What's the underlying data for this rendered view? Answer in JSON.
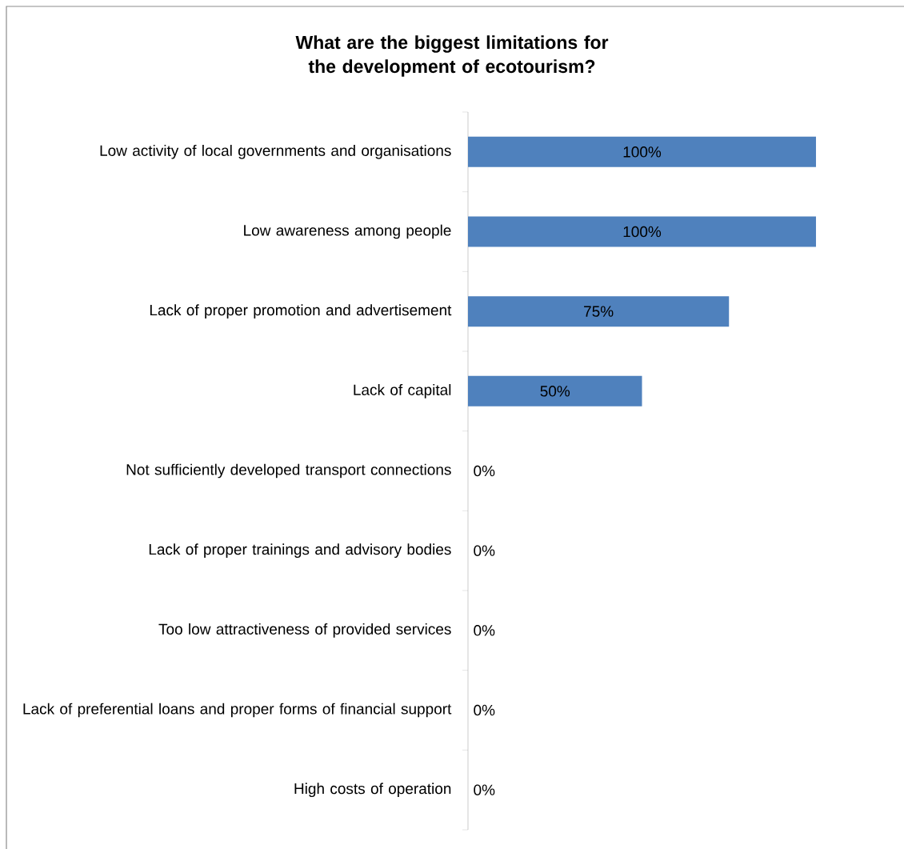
{
  "chart_data": {
    "type": "bar",
    "orientation": "horizontal",
    "title": "What are the biggest limitations for the development of ecotourism?",
    "categories": [
      "Low activity of local governments and organisations",
      "Low awareness among people",
      "Lack of proper promotion and advertisement",
      "Lack of capital",
      "Not sufficiently developed transport connections",
      "Lack of proper trainings and advisory bodies",
      "Too low attractiveness of provided services",
      "Lack of preferential loans and proper forms of financial support",
      "High costs of operation"
    ],
    "values": [
      100,
      100,
      75,
      50,
      0,
      0,
      0,
      0,
      0
    ],
    "value_labels": [
      "100%",
      "100%",
      "75%",
      "50%",
      "0%",
      "0%",
      "0%",
      "0%",
      "0%"
    ],
    "color": "#4f81bd",
    "tick_labels": "y"
  }
}
